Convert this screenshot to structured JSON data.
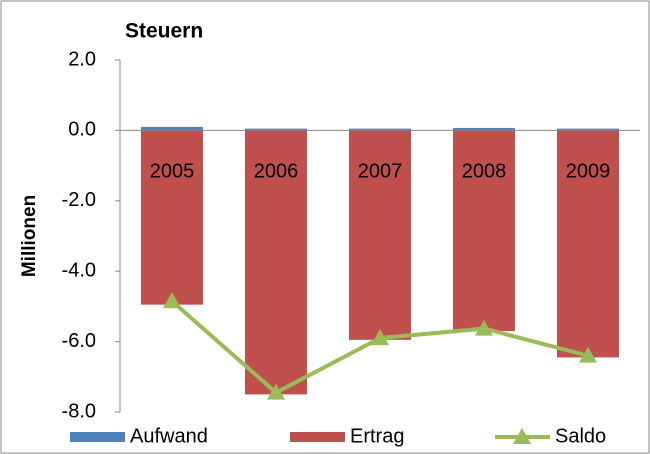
{
  "chart_data": {
    "type": "bar",
    "title": "Steuern",
    "y_label": "Millionen",
    "categories": [
      "2005",
      "2006",
      "2007",
      "2008",
      "2009"
    ],
    "series": [
      {
        "name": "Aufwand",
        "color": "#4f81bd",
        "values": [
          0.1,
          0.05,
          0.05,
          0.07,
          0.05
        ]
      },
      {
        "name": "Ertrag",
        "color": "#c0504d",
        "values": [
          -4.95,
          -7.5,
          -5.95,
          -5.7,
          -6.45
        ]
      },
      {
        "name": "Saldo",
        "type": "line",
        "color": "#9bbb59",
        "values": [
          -4.85,
          -7.45,
          -5.9,
          -5.63,
          -6.4
        ]
      }
    ],
    "ylim": [
      -8,
      2
    ],
    "yticks": [
      {
        "value": -8,
        "label": "-8.0"
      },
      {
        "value": -6,
        "label": "-6.0"
      },
      {
        "value": -4,
        "label": "-4.0"
      },
      {
        "value": -2,
        "label": "-2.0"
      },
      {
        "value": 0,
        "label": "0.0"
      },
      {
        "value": 2,
        "label": "2.0"
      }
    ],
    "grid": false,
    "legend": "bottom"
  }
}
